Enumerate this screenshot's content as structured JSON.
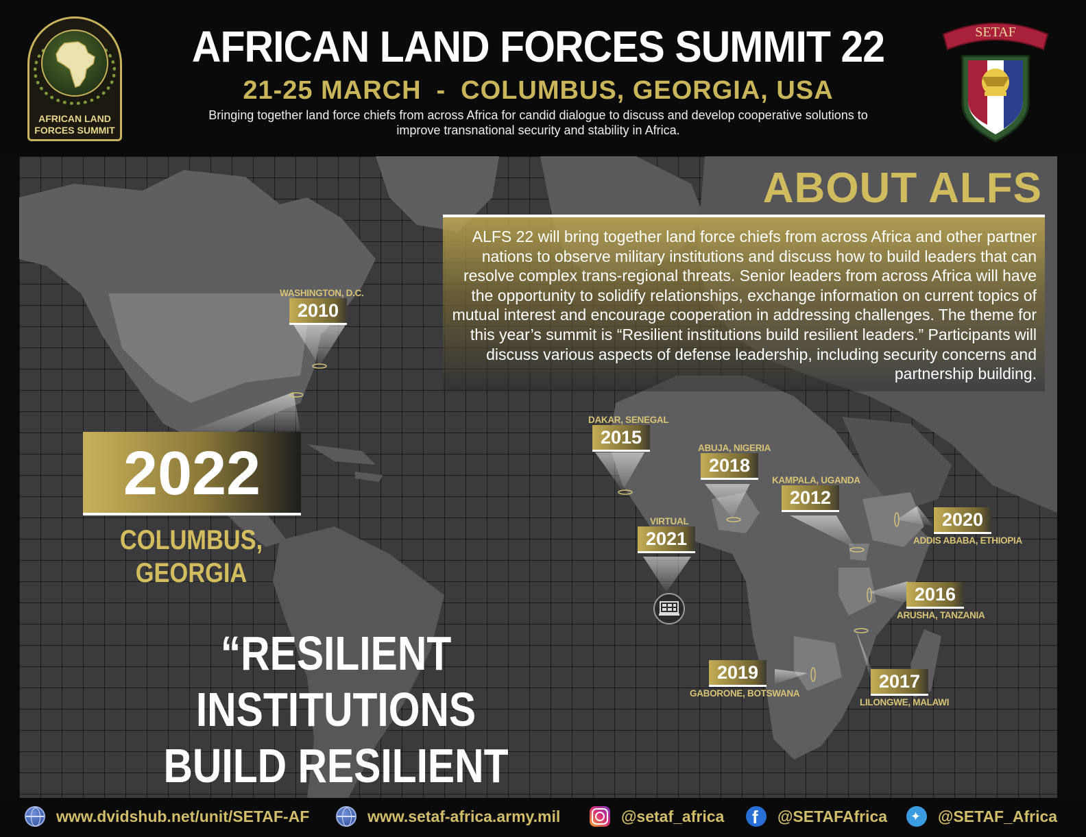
{
  "header": {
    "logo_text_line1": "AFRICAN LAND",
    "logo_text_line2": "FORCES SUMMIT",
    "title": "AFRICAN LAND FORCES SUMMIT 22",
    "dates": "21-25 MARCH",
    "separator": "-",
    "location": "COLUMBUS, GEORGIA, USA",
    "tagline": "Bringing together land force chiefs from across Africa for candid dialogue to discuss and develop cooperative solutions to improve transnational security and stability in Africa.",
    "setaf_banner": "SETAF"
  },
  "about": {
    "heading": "ABOUT ALFS",
    "body": "ALFS 22 will bring together land force chiefs from across Africa and other partner nations to observe military institutions and discuss how to build leaders that can resolve complex trans-regional threats.  Senior leaders from across Africa will have the opportunity to solidify relationships, exchange information on current topics of mutual interest and encourage cooperation in addressing challenges. The theme for this year’s summit is “Resilient institutions build resilient leaders.” Participants will discuss various aspects of defense leadership, including security concerns and partnership building."
  },
  "markers": [
    {
      "city": "WASHINGTON, D.C.",
      "year": "2010"
    },
    {
      "city": "DAKAR, SENEGAL",
      "year": "2015"
    },
    {
      "city": "ABUJA, NIGERIA",
      "year": "2018"
    },
    {
      "city": "KAMPALA, UGANDA",
      "year": "2012"
    },
    {
      "city": "VIRTUAL",
      "year": "2021"
    },
    {
      "city": "ADDIS ABABA, ETHIOPIA",
      "year": "2020"
    },
    {
      "city": "ARUSHA, TANZANIA",
      "year": "2016"
    },
    {
      "city": "GABORONE, BOTSWANA",
      "year": "2019"
    },
    {
      "city": "LILONGWE, MALAWI",
      "year": "2017"
    }
  ],
  "current": {
    "year": "2022",
    "city": "COLUMBUS, GEORGIA"
  },
  "theme": {
    "line1": "“RESILIENT INSTITUTIONS",
    "line2": "BUILD RESILIENT LEADERS”"
  },
  "footer": {
    "links": [
      {
        "icon": "globe-icon",
        "label": "www.dvidshub.net/unit/SETAF-AF"
      },
      {
        "icon": "globe-icon",
        "label": "www.setaf-africa.army.mil"
      },
      {
        "icon": "instagram-icon",
        "label": "@setaf_africa"
      },
      {
        "icon": "facebook-icon",
        "label": "@SETAFAfrica"
      },
      {
        "icon": "twitter-icon",
        "label": "@SETAF_Africa"
      }
    ]
  },
  "colors": {
    "gold": "#cbb55a",
    "background": "#0a0a0a",
    "map": "#3b3b3d",
    "setaf_red": "#a8203a"
  }
}
